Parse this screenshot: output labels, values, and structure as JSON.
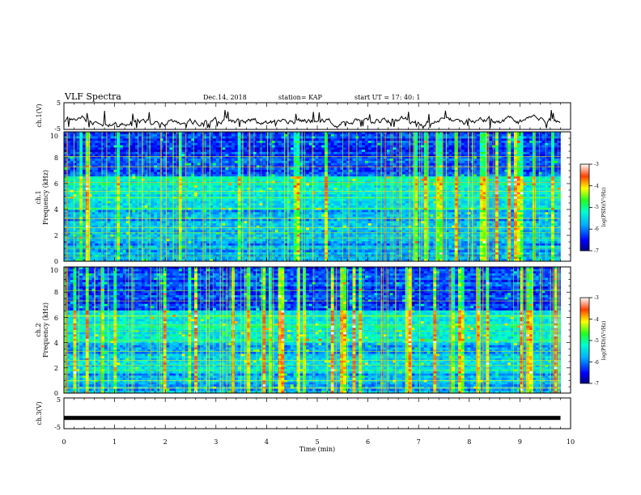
{
  "header": {
    "title": "VLF Spectra",
    "date": "Dec.14, 2018",
    "station": "station= KAP",
    "start": "start UT = 17: 40: 1"
  },
  "chart_data": [
    {
      "type": "line",
      "panel": "ch1-waveform",
      "ylabel": "ch.1(V)",
      "ylim": [
        -5,
        5
      ],
      "ytick_labels": [
        "5",
        "-5"
      ],
      "xlim": [
        0,
        10
      ],
      "series_color": "#000000",
      "description_values": "noisy waveform fluctuating roughly between -4 and 0 V over 0–9.8 min"
    },
    {
      "type": "heatmap",
      "panel": "ch1-spectrogram",
      "ylabel_line1": "ch.1",
      "ylabel_line2": "Frequency (kHz)",
      "ylim": [
        0,
        10
      ],
      "ytick_labels": [
        "0",
        "2",
        "4",
        "6",
        "8",
        "10"
      ],
      "xlim": [
        0,
        10
      ],
      "data_extent_min": 9.8,
      "colorbar": {
        "label": "log(PSD)(V²/Hz)",
        "range": [
          -7,
          -3
        ],
        "tick_labels": [
          "-3",
          "-4",
          "-5",
          "-6",
          "-7"
        ]
      }
    },
    {
      "type": "heatmap",
      "panel": "ch2-spectrogram",
      "ylabel_line1": "ch.2",
      "ylabel_line2": "Frequency (kHz)",
      "ylim": [
        0,
        10
      ],
      "ytick_labels": [
        "0",
        "2",
        "4",
        "6",
        "8",
        "10"
      ],
      "xlim": [
        0,
        10
      ],
      "data_extent_min": 9.8,
      "colorbar": {
        "label": "log(PSD)(V²/Hz)",
        "range": [
          -7,
          -3
        ],
        "tick_labels": [
          "-3",
          "-4",
          "-5",
          "-6",
          "-7"
        ]
      }
    },
    {
      "type": "line",
      "panel": "ch3-waveform",
      "ylabel": "ch.3(V)",
      "ylim": [
        -5,
        5
      ],
      "ytick_labels": [
        "5",
        "-5"
      ],
      "xlim": [
        0,
        10
      ],
      "constant_value": -1.5,
      "series_color": "#000000"
    }
  ],
  "xaxis": {
    "label": "Time (min)",
    "tick_labels": [
      "0",
      "1",
      "2",
      "3",
      "4",
      "5",
      "6",
      "7",
      "8",
      "9",
      "10"
    ]
  }
}
